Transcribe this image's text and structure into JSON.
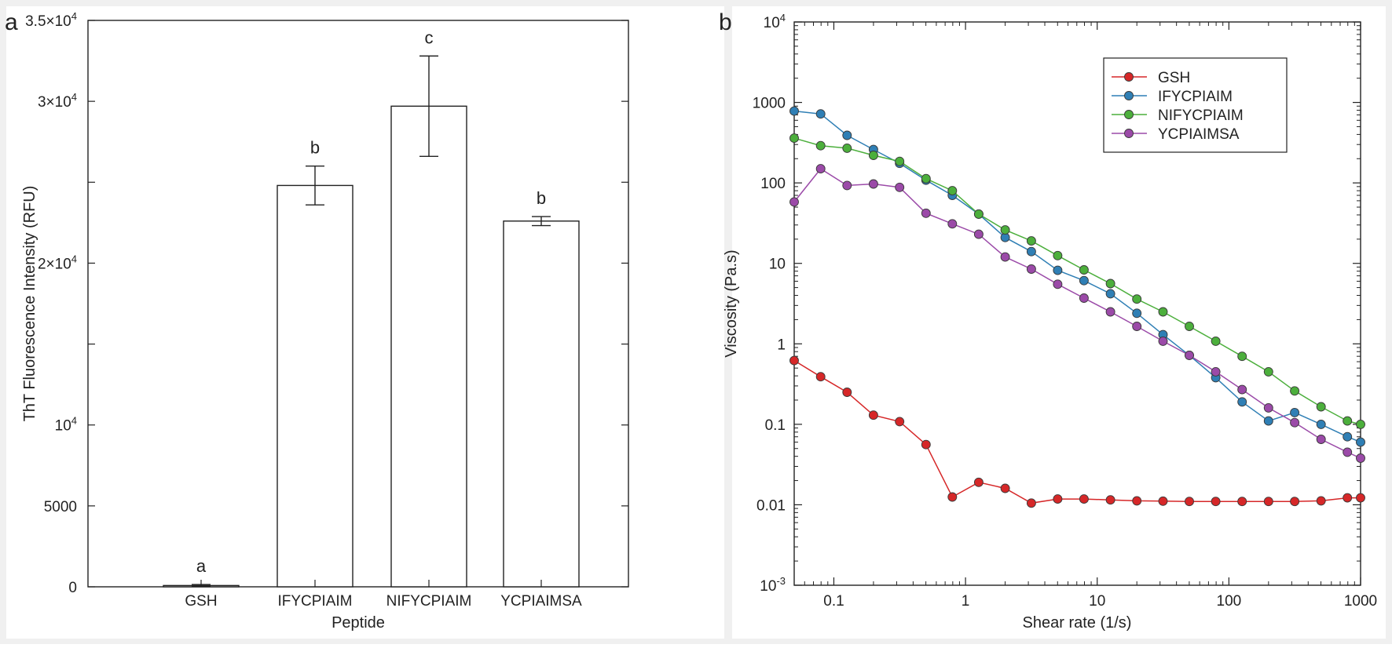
{
  "panels": [
    {
      "label": "a"
    },
    {
      "label": "b"
    }
  ],
  "chart_data": [
    {
      "type": "bar",
      "xlabel": "Peptide",
      "ylabel": "ThT Fluorescence Intensity (RFU)",
      "ylim": [
        0,
        35000
      ],
      "ytick_values": [
        0,
        5000,
        10000,
        20000,
        30000,
        35000
      ],
      "ytick_labels": [
        {
          "base": "0",
          "exp": ""
        },
        {
          "base": "5000",
          "exp": ""
        },
        {
          "base": "10",
          "exp": "4"
        },
        {
          "base": "2×10",
          "exp": "4"
        },
        {
          "base": "3×10",
          "exp": "4"
        },
        {
          "base": "3.5×10",
          "exp": "4"
        }
      ],
      "categories": [
        "GSH",
        "IFYCPIAIM",
        "NIFYCPIAIM",
        "YCPIAIMSA"
      ],
      "values": [
        80,
        24800,
        29700,
        22600
      ],
      "errors": [
        60,
        1200,
        3100,
        280
      ],
      "significance": [
        "a",
        "b",
        "c",
        "b"
      ],
      "bar_fill": "#ffffff",
      "bar_stroke": "#222222"
    },
    {
      "type": "line",
      "xlabel": "Shear rate (1/s)",
      "ylabel": "Viscosity (Pa.s)",
      "xscale": "log",
      "yscale": "log",
      "xlim": [
        0.05,
        1000
      ],
      "ylim": [
        0.001,
        10000
      ],
      "xtick_values": [
        0.1,
        1,
        10,
        100,
        1000
      ],
      "xtick_labels": [
        "0.1",
        "1",
        "10",
        "100",
        "1000"
      ],
      "ytick_values": [
        0.001,
        0.01,
        0.1,
        1,
        10,
        100,
        1000,
        10000
      ],
      "ytick_labels": [
        {
          "base": "10",
          "exp": "-3"
        },
        {
          "base": "0.01",
          "exp": ""
        },
        {
          "base": "0.1",
          "exp": ""
        },
        {
          "base": "1",
          "exp": ""
        },
        {
          "base": "10",
          "exp": ""
        },
        {
          "base": "100",
          "exp": ""
        },
        {
          "base": "1000",
          "exp": ""
        },
        {
          "base": "10",
          "exp": "4"
        }
      ],
      "legend_position": "top-right",
      "x": [
        0.05,
        0.0794,
        0.126,
        0.2,
        0.316,
        0.501,
        0.794,
        1.26,
        2,
        3.16,
        5.01,
        7.94,
        12.6,
        20,
        31.6,
        50.1,
        79.4,
        126,
        200,
        316,
        501,
        794,
        1000
      ],
      "series": [
        {
          "name": "GSH",
          "color": "#d62728",
          "values": [
            0.62,
            0.39,
            0.25,
            0.13,
            0.108,
            0.056,
            0.0125,
            0.019,
            0.016,
            0.0105,
            0.0118,
            0.0118,
            0.0115,
            0.0112,
            0.0111,
            0.011,
            0.011,
            0.011,
            0.011,
            0.011,
            0.0112,
            0.0122,
            0.0122
          ]
        },
        {
          "name": "IFYCPIAIM",
          "color": "#2f7fb5",
          "values": [
            780,
            720,
            390,
            260,
            175,
            108,
            70,
            41,
            21,
            14,
            8.2,
            6.1,
            4.2,
            2.4,
            1.3,
            0.72,
            0.38,
            0.19,
            0.11,
            0.14,
            0.1,
            0.07,
            0.06
          ]
        },
        {
          "name": "NIFYCPIAIM",
          "color": "#4caf3c",
          "values": [
            360,
            290,
            270,
            220,
            185,
            113,
            80,
            41,
            26,
            19,
            12.5,
            8.3,
            5.6,
            3.6,
            2.5,
            1.65,
            1.08,
            0.7,
            0.45,
            0.26,
            0.165,
            0.11,
            0.1
          ]
        },
        {
          "name": "YCPIAIMSA",
          "color": "#9b4aa8",
          "values": [
            58,
            150,
            93,
            97,
            88,
            42,
            31,
            23,
            12,
            8.5,
            5.5,
            3.7,
            2.5,
            1.65,
            1.08,
            0.72,
            0.45,
            0.27,
            0.16,
            0.105,
            0.065,
            0.045,
            0.038
          ]
        }
      ]
    }
  ]
}
